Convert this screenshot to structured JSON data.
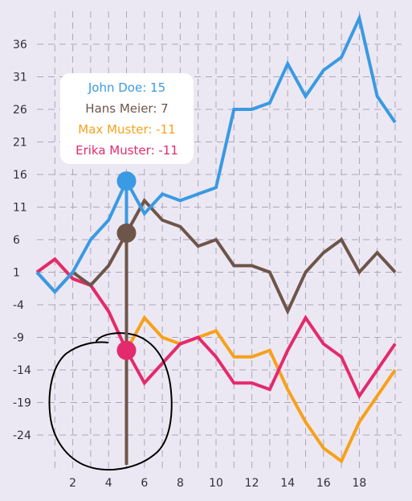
{
  "chart_data": {
    "type": "line",
    "title": "",
    "xlabel": "",
    "ylabel": "",
    "x": [
      0,
      1,
      2,
      3,
      4,
      5,
      6,
      7,
      8,
      9,
      10,
      11,
      12,
      13,
      14,
      15,
      16,
      17,
      18,
      19,
      20
    ],
    "xlim": [
      0,
      20
    ],
    "ylim": [
      -28,
      40
    ],
    "x_ticks": [
      2,
      4,
      6,
      8,
      10,
      12,
      14,
      16,
      18
    ],
    "y_ticks": [
      -24,
      -19,
      -14,
      -9,
      -4,
      1,
      6,
      11,
      16,
      21,
      26,
      31,
      36
    ],
    "grid": true,
    "series": [
      {
        "name": "John Doe",
        "color": "#3a9ae3",
        "values": [
          1,
          -2,
          1,
          6,
          9,
          15,
          10,
          13,
          12,
          13,
          14,
          26,
          26,
          27,
          33,
          28,
          32,
          34,
          40,
          28,
          24
        ]
      },
      {
        "name": "Hans Meier",
        "color": "#6e554a",
        "values": [
          1,
          -2,
          1,
          -1,
          2,
          7,
          12,
          9,
          8,
          5,
          6,
          2,
          2,
          1,
          -5,
          1,
          4,
          6,
          1,
          4,
          1
        ]
      },
      {
        "name": "Max Muster",
        "color": "#f7a11a",
        "values": [
          1,
          3,
          0,
          -1,
          -5,
          -11,
          -6,
          -9,
          -10,
          -9,
          -8,
          -12,
          -12,
          -11,
          -17,
          -22,
          -26,
          -28,
          -22,
          -18,
          -14
        ]
      },
      {
        "name": "Erika Muster",
        "color": "#e42a6e",
        "values": [
          1,
          3,
          0,
          -1,
          -5,
          -11,
          -16,
          -13,
          -10,
          -9,
          -12,
          -16,
          -16,
          -17,
          -11,
          -6,
          -10,
          -12,
          -18,
          -14,
          -10
        ]
      }
    ],
    "tooltip": {
      "x": 5,
      "entries": [
        {
          "label": "John Doe: 15",
          "color": "#3a9ae3"
        },
        {
          "label": "Hans Meier: 7",
          "color": "#6e554a"
        },
        {
          "label": "Max Muster: -11",
          "color": "#f7a11a"
        },
        {
          "label": "Erika Muster: -11",
          "color": "#e42a6e"
        }
      ]
    }
  }
}
